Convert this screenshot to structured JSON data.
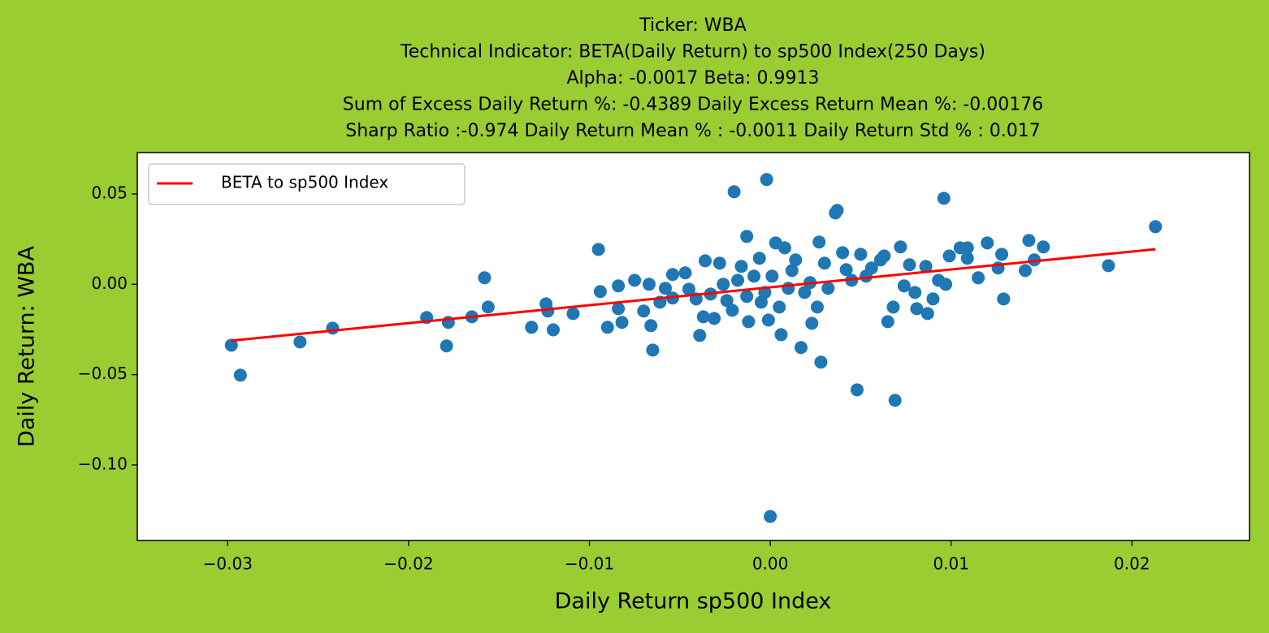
{
  "chart_data": {
    "type": "scatter",
    "title": [
      "Ticker: WBA",
      "Technical Indicator: BETA(Daily Return) to sp500 Index(250 Days)",
      "Alpha: -0.0017   Beta: 0.9913",
      "Sum of Excess Daily Return %: -0.4389   Daily Excess Return Mean %: -0.00176",
      "Sharp Ratio :-0.974     Daily Return Mean % : -0.0011     Daily Return Std % : 0.017"
    ],
    "x_label": "Daily Return sp500 Index",
    "y_label": "Daily Return: WBA",
    "xlim": [
      -0.035,
      0.0265
    ],
    "ylim": [
      -0.1418,
      0.0729
    ],
    "xticks": [
      {
        "value": -0.03,
        "label": "−0.03"
      },
      {
        "value": -0.02,
        "label": "−0.02"
      },
      {
        "value": -0.01,
        "label": "−0.01"
      },
      {
        "value": 0,
        "label": "0.00"
      },
      0.01,
      0.02
    ],
    "yticks": [
      {
        "value": -0.1,
        "label": "−0.10"
      },
      {
        "value": -0.05,
        "label": "−0.05"
      },
      {
        "value": 0,
        "label": "0.00"
      },
      0.05
    ],
    "legend": "upper left",
    "series": [
      {
        "name": "BETA to sp500 Index",
        "type": "line",
        "color": "#ff0000",
        "x": [
          -0.0298,
          0.0213
        ],
        "values": [
          -0.0312,
          0.0194
        ]
      },
      {
        "type": "scatter",
        "color": "#1f77b4",
        "x": [
          -0.0298,
          -0.0293,
          -0.026,
          -0.0242,
          -0.019,
          -0.0179,
          -0.0178,
          -0.0165,
          -0.0158,
          -0.0156,
          -0.0132,
          -0.0124,
          -0.0123,
          -0.012,
          -0.0109,
          -0.0095,
          -0.0094,
          -0.009,
          -0.0084,
          -0.0084,
          -0.0082,
          -0.0075,
          -0.007,
          -0.0067,
          -0.0066,
          -0.0065,
          -0.0061,
          -0.0058,
          -0.0054,
          -0.0054,
          -0.0047,
          -0.0045,
          -0.0041,
          -0.0039,
          -0.0037,
          -0.0036,
          -0.0033,
          -0.0031,
          -0.0028,
          -0.0026,
          -0.0024,
          -0.0021,
          -0.002,
          -0.0018,
          -0.0016,
          -0.0013,
          -0.0013,
          -0.0012,
          -0.0009,
          -0.0006,
          -0.0005,
          -0.0003,
          -0.0002,
          -0.0001,
          0,
          0.0001,
          0.0003,
          0.0005,
          0.0006,
          0.0008,
          0.001,
          0.0012,
          0.0014,
          0.0017,
          0.0019,
          0.0022,
          0.0023,
          0.0026,
          0.0027,
          0.0028,
          0.003,
          0.0032,
          0.0036,
          0.0037,
          0.004,
          0.0042,
          0.0045,
          0.0048,
          0.005,
          0.0053,
          0.0056,
          0.0061,
          0.0063,
          0.0065,
          0.0068,
          0.0069,
          0.0072,
          0.0074,
          0.0077,
          0.008,
          0.0081,
          0.0086,
          0.0087,
          0.009,
          0.0093,
          0.0096,
          0.0097,
          0.0099,
          0.0105,
          0.0109,
          0.0109,
          0.0115,
          0.012,
          0.0126,
          0.0128,
          0.0129,
          0.0141,
          0.0143,
          0.0146,
          0.0151,
          0.0187,
          0.0213
        ],
        "values": [
          -0.0337,
          -0.0503,
          -0.0319,
          -0.0243,
          -0.0184,
          -0.0341,
          -0.0211,
          -0.018,
          0.0036,
          -0.0126,
          -0.0238,
          -0.0108,
          -0.0148,
          -0.0252,
          -0.0162,
          0.0193,
          -0.004,
          -0.0238,
          -0.0135,
          -0.0009,
          -0.0211,
          0.0022,
          -0.0148,
          0,
          -0.0229,
          -0.0364,
          -0.0099,
          -0.0022,
          -0.0076,
          0.0054,
          0.0063,
          -0.0027,
          -0.0081,
          -0.0283,
          -0.018,
          0.013,
          -0.0054,
          -0.0189,
          0.0117,
          0,
          -0.009,
          -0.0144,
          0.0512,
          0.0022,
          0.0099,
          -0.0067,
          0.0265,
          -0.0207,
          0.0045,
          0.0144,
          -0.0099,
          -0.0045,
          0.058,
          -0.0198,
          -0.1285,
          0.0045,
          0.0229,
          -0.0126,
          -0.0279,
          0.0202,
          -0.0022,
          0.0076,
          0.0135,
          -0.035,
          -0.0045,
          0.0009,
          -0.0216,
          -0.0126,
          0.0234,
          -0.0431,
          0.0117,
          -0.0022,
          0.0395,
          0.0409,
          0.0175,
          0.0081,
          0.0022,
          -0.0584,
          0.0166,
          0.0045,
          0.009,
          0.0135,
          0.0157,
          -0.0207,
          -0.0126,
          -0.0642,
          0.0207,
          -0.0009,
          0.0108,
          -0.0045,
          -0.0135,
          0.0099,
          -0.0162,
          -0.0081,
          0.0022,
          0.0476,
          0,
          0.0157,
          0.0202,
          0.0202,
          0.0144,
          0.0036,
          0.0229,
          0.009,
          0.0166,
          -0.0081,
          0.0076,
          0.0243,
          0.0135,
          0.0207,
          0.0103,
          0.0319
        ]
      }
    ]
  }
}
